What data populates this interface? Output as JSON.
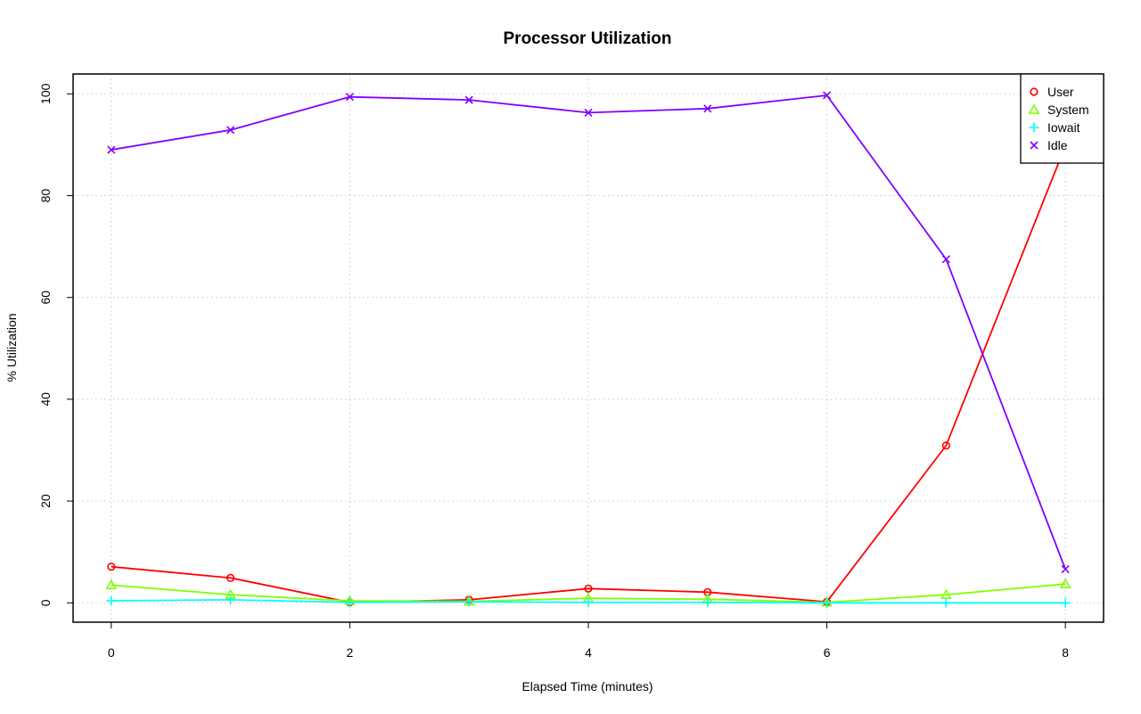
{
  "chart_data": {
    "type": "line",
    "title": "Processor Utilization",
    "xlabel": "Elapsed Time (minutes)",
    "ylabel": "% Utilization",
    "x": [
      0,
      1,
      2,
      3,
      4,
      5,
      6,
      7,
      8
    ],
    "xlim": [
      -0.32,
      8.32
    ],
    "ylim": [
      -3.8,
      103.9
    ],
    "xticks": [
      0,
      2,
      4,
      6,
      8
    ],
    "yticks": [
      0,
      20,
      40,
      60,
      80,
      100
    ],
    "grid": true,
    "legend_position": "top-right",
    "series": [
      {
        "name": "User",
        "color": "#ff0000",
        "marker": "circle",
        "values": [
          7.1,
          4.9,
          0.1,
          0.6,
          2.8,
          2.1,
          0.2,
          30.9,
          89.8
        ]
      },
      {
        "name": "System",
        "color": "#80ff00",
        "marker": "triangle",
        "values": [
          3.5,
          1.6,
          0.4,
          0.3,
          0.9,
          0.7,
          0.1,
          1.6,
          3.7
        ]
      },
      {
        "name": "Iowait",
        "color": "#00ffff",
        "marker": "plus",
        "values": [
          0.4,
          0.6,
          0.1,
          0.2,
          0.1,
          0.1,
          0.0,
          0.0,
          0.0
        ]
      },
      {
        "name": "Idle",
        "color": "#8000ff",
        "marker": "cross",
        "values": [
          89.0,
          92.9,
          99.4,
          98.8,
          96.3,
          97.1,
          99.7,
          67.5,
          6.6
        ]
      }
    ]
  }
}
